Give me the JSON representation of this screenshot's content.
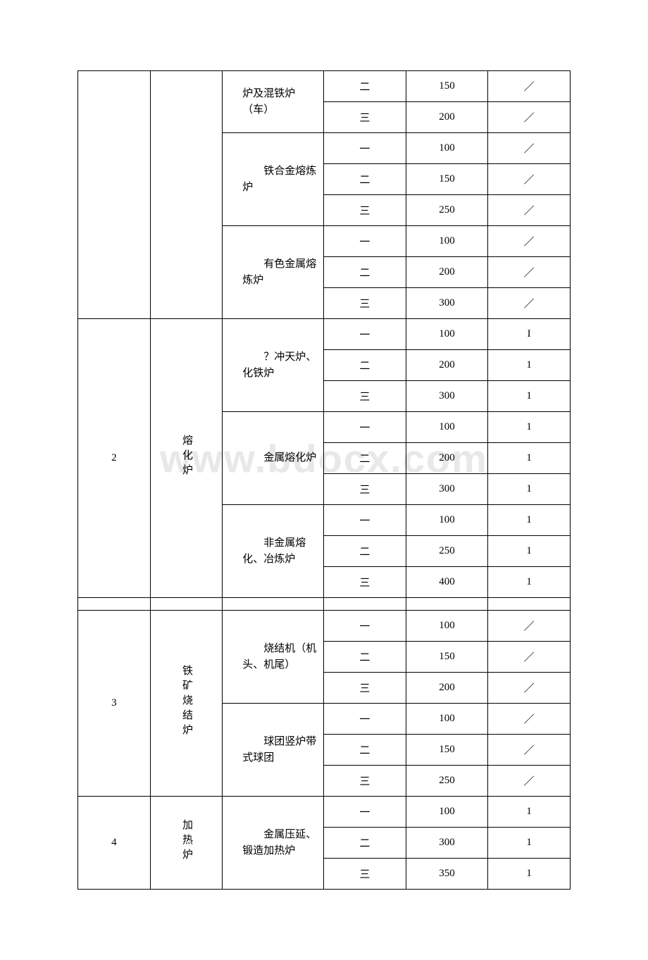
{
  "watermark": "www.bdocx.com",
  "table": {
    "colors": {
      "border": "#000000",
      "text": "#000000",
      "background": "#ffffff",
      "watermark": "#e8e8e8"
    },
    "typography": {
      "font_family": "SimSun",
      "cell_fontsize": 15,
      "watermark_fontsize": 56
    },
    "column_widths_pct": [
      14.7,
      14.7,
      20.6,
      16.7,
      16.7,
      16.7
    ],
    "sections": [
      {
        "group_num": "",
        "group_name": "",
        "subgroups": [
          {
            "name": "炉及混铁炉（车）",
            "rows": [
              {
                "level": "二",
                "v1": "150",
                "v2": "／"
              },
              {
                "level": "三",
                "v1": "200",
                "v2": "／"
              }
            ]
          },
          {
            "name": "铁合金熔炼炉",
            "rows": [
              {
                "level": "一",
                "v1": "100",
                "v2": "／"
              },
              {
                "level": "二",
                "v1": "150",
                "v2": "／"
              },
              {
                "level": "三",
                "v1": "250",
                "v2": "／"
              }
            ]
          },
          {
            "name": "有色金属熔炼炉",
            "rows": [
              {
                "level": "一",
                "v1": "100",
                "v2": "／"
              },
              {
                "level": "二",
                "v1": "200",
                "v2": "／"
              },
              {
                "level": "三",
                "v1": "300",
                "v2": "／"
              }
            ]
          }
        ]
      },
      {
        "group_num": "2",
        "group_name": "熔化炉",
        "subgroups": [
          {
            "name": "？冲天炉、化铁炉",
            "rows": [
              {
                "level": "一",
                "v1": "100",
                "v2": "I"
              },
              {
                "level": "二",
                "v1": "200",
                "v2": "1"
              },
              {
                "level": "三",
                "v1": "300",
                "v2": "1"
              }
            ]
          },
          {
            "name": "金属熔化炉",
            "rows": [
              {
                "level": "一",
                "v1": "100",
                "v2": "1"
              },
              {
                "level": "二",
                "v1": "200",
                "v2": "1"
              },
              {
                "level": "三",
                "v1": "300",
                "v2": "1"
              }
            ]
          },
          {
            "name": "非金属熔化、冶炼炉",
            "rows": [
              {
                "level": "一",
                "v1": "100",
                "v2": "1"
              },
              {
                "level": "二",
                "v1": "250",
                "v2": "1"
              },
              {
                "level": "三",
                "v1": "400",
                "v2": "1"
              }
            ]
          }
        ]
      },
      {
        "group_num": "3",
        "group_name": "铁矿烧结炉",
        "subgroups": [
          {
            "name": "烧结机（机头、机尾）",
            "rows": [
              {
                "level": "一",
                "v1": "100",
                "v2": "／"
              },
              {
                "level": "二",
                "v1": "150",
                "v2": "／"
              },
              {
                "level": "三",
                "v1": "200",
                "v2": "／"
              }
            ]
          },
          {
            "name": "球团竖炉带式球团",
            "rows": [
              {
                "level": "一",
                "v1": "100",
                "v2": "／"
              },
              {
                "level": "二",
                "v1": "150",
                "v2": "／"
              },
              {
                "level": "三",
                "v1": "250",
                "v2": "／"
              }
            ]
          }
        ]
      },
      {
        "group_num": "4",
        "group_name": "加热炉",
        "subgroups": [
          {
            "name": "金属压延、锻造加热炉",
            "rows": [
              {
                "level": "一",
                "v1": "100",
                "v2": "1"
              },
              {
                "level": "二",
                "v1": "300",
                "v2": "1"
              },
              {
                "level": "三",
                "v1": "350",
                "v2": "1"
              }
            ]
          }
        ]
      }
    ]
  }
}
